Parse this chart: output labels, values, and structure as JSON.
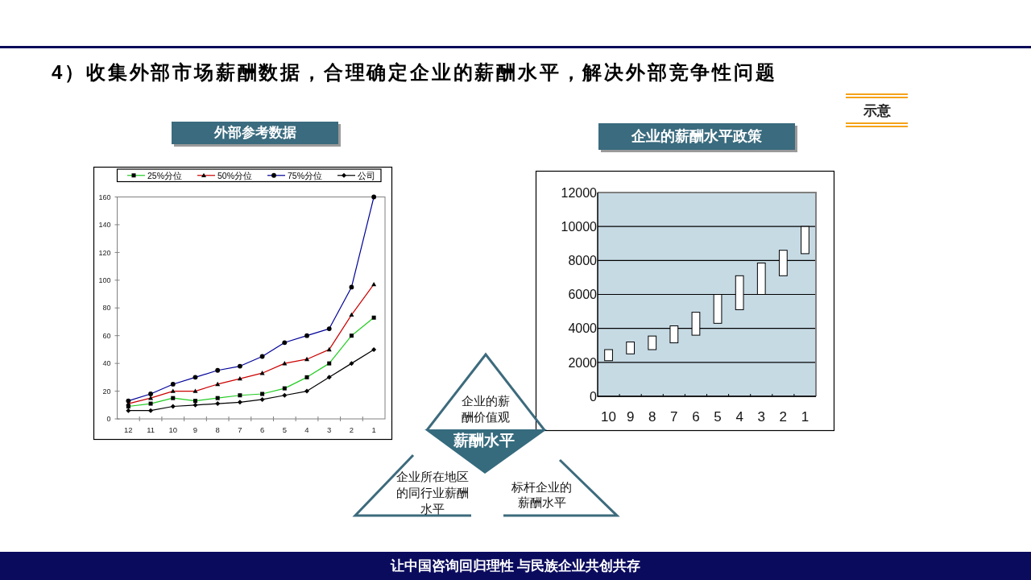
{
  "chart_data": [
    {
      "type": "other",
      "title": "4）收集外部市场薪酬数据，合理确定企业的薪酬水平，解决外部竞争性问题",
      "annotations": [
        "示意"
      ]
    },
    {
      "type": "line",
      "title": "外部参考数据",
      "categories": [
        "12",
        "11",
        "10",
        "9",
        "8",
        "7",
        "6",
        "5",
        "4",
        "3",
        "2",
        "1"
      ],
      "series": [
        {
          "name": "25%分位",
          "color": "#22cc22",
          "marker": "square",
          "values": [
            9,
            11,
            15,
            13,
            15,
            17,
            18,
            22,
            30,
            40,
            60,
            73
          ]
        },
        {
          "name": "50%分位",
          "color": "#cc0000",
          "marker": "triangle",
          "values": [
            11,
            15,
            20,
            20,
            25,
            29,
            33,
            40,
            43,
            50,
            75,
            97
          ]
        },
        {
          "name": "75%分位",
          "color": "#000099",
          "marker": "circle",
          "values": [
            13,
            18,
            25,
            30,
            35,
            38,
            45,
            55,
            60,
            65,
            95,
            160
          ]
        },
        {
          "name": "公司",
          "color": "#000000",
          "marker": "diamond",
          "values": [
            6,
            6,
            9,
            10,
            11,
            12,
            14,
            17,
            20,
            30,
            40,
            50
          ]
        }
      ],
      "ylim": [
        0,
        160
      ],
      "yticks": [
        0,
        20,
        40,
        60,
        80,
        100,
        120,
        140,
        160
      ],
      "legend": "top"
    },
    {
      "type": "bar",
      "title": "企业的薪酬水平政策",
      "categories": [
        "10",
        "9",
        "8",
        "7",
        "6",
        "5",
        "4",
        "3",
        "2",
        "1"
      ],
      "base": [
        2100,
        2500,
        2750,
        3150,
        3600,
        4300,
        5100,
        6000,
        7100,
        8400
      ],
      "values": [
        650,
        700,
        800,
        1000,
        1350,
        1700,
        2000,
        1850,
        1500,
        1600
      ],
      "color": "#ffffff",
      "ylim": [
        0,
        12000
      ],
      "yticks": [
        0,
        2000,
        4000,
        6000,
        8000,
        10000,
        12000
      ],
      "grid": "y"
    },
    {
      "type": "other",
      "annotations": [
        "企业的薪酬价值观",
        "薪酬水平",
        "企业所在地区的同行业薪酬水平",
        "标杆企业的薪酬水平",
        "让中国咨询回归理性 与民族企业共创共存"
      ]
    }
  ]
}
